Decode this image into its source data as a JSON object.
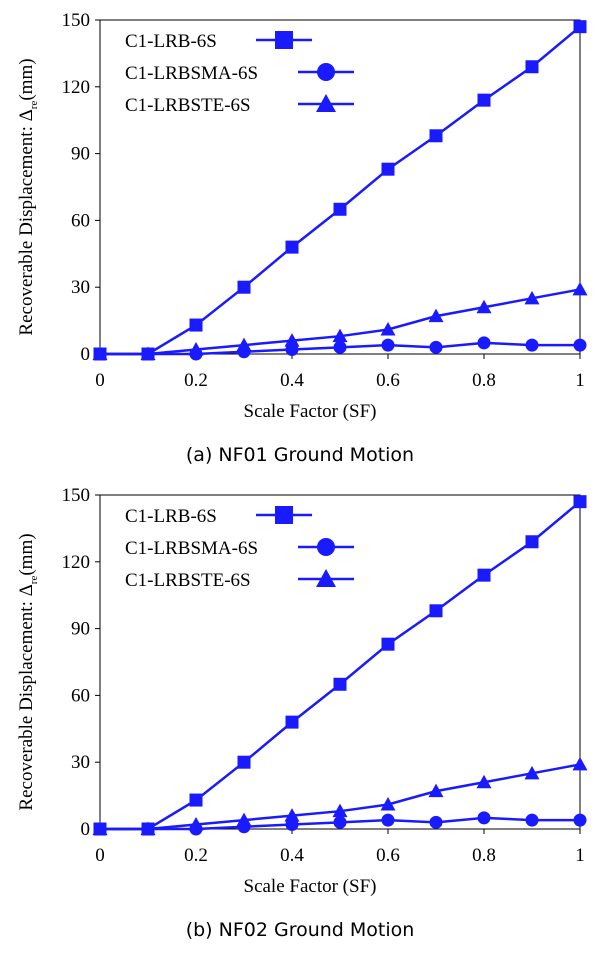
{
  "chart_data": [
    {
      "type": "line",
      "caption": "(a) NF01 Ground Motion",
      "xlabel": "Scale Factor (SF)",
      "ylabel_main": "Recoverable Displacement: Δ",
      "ylabel_sub": "re",
      "ylabel_unit": "(mm)",
      "xlim": [
        0,
        1
      ],
      "ylim": [
        0,
        150
      ],
      "x_ticks": [
        "0",
        "0.2",
        "0.4",
        "0.6",
        "0.8",
        "1"
      ],
      "y_ticks": [
        "0",
        "30",
        "60",
        "90",
        "120",
        "150"
      ],
      "x": [
        0,
        0.1,
        0.2,
        0.3,
        0.4,
        0.5,
        0.6,
        0.7,
        0.8,
        0.9,
        1.0
      ],
      "legend_position": "top-left",
      "line_color": "#1a1aff",
      "series": [
        {
          "name": "C1-LRB-6S",
          "marker": "square",
          "values": [
            0,
            0,
            13,
            30,
            48,
            65,
            83,
            98,
            114,
            129,
            147
          ]
        },
        {
          "name": "C1-LRBSMA-6S",
          "marker": "circle",
          "values": [
            0,
            0,
            0,
            1,
            2,
            3,
            4,
            3,
            5,
            4,
            4
          ]
        },
        {
          "name": "C1-LRBSTE-6S",
          "marker": "triangle",
          "values": [
            0,
            0,
            2,
            4,
            6,
            8,
            11,
            17,
            21,
            25,
            29
          ]
        }
      ]
    },
    {
      "type": "line",
      "caption": "(b) NF02 Ground Motion",
      "xlabel": "Scale Factor (SF)",
      "ylabel_main": "Recoverable Displacement: Δ",
      "ylabel_sub": "re",
      "ylabel_unit": "(mm)",
      "xlim": [
        0,
        1
      ],
      "ylim": [
        0,
        150
      ],
      "x_ticks": [
        "0",
        "0.2",
        "0.4",
        "0.6",
        "0.8",
        "1"
      ],
      "y_ticks": [
        "0",
        "30",
        "60",
        "90",
        "120",
        "150"
      ],
      "x": [
        0,
        0.1,
        0.2,
        0.3,
        0.4,
        0.5,
        0.6,
        0.7,
        0.8,
        0.9,
        1.0
      ],
      "legend_position": "top-left",
      "line_color": "#1a1aff",
      "series": [
        {
          "name": "C1-LRB-6S",
          "marker": "square",
          "values": [
            0,
            0,
            13,
            30,
            48,
            65,
            83,
            98,
            114,
            129,
            147
          ]
        },
        {
          "name": "C1-LRBSMA-6S",
          "marker": "circle",
          "values": [
            0,
            0,
            0,
            1,
            2,
            3,
            4,
            3,
            5,
            4,
            4
          ]
        },
        {
          "name": "C1-LRBSTE-6S",
          "marker": "triangle",
          "values": [
            0,
            0,
            2,
            4,
            6,
            8,
            11,
            17,
            21,
            25,
            29
          ]
        }
      ]
    }
  ]
}
